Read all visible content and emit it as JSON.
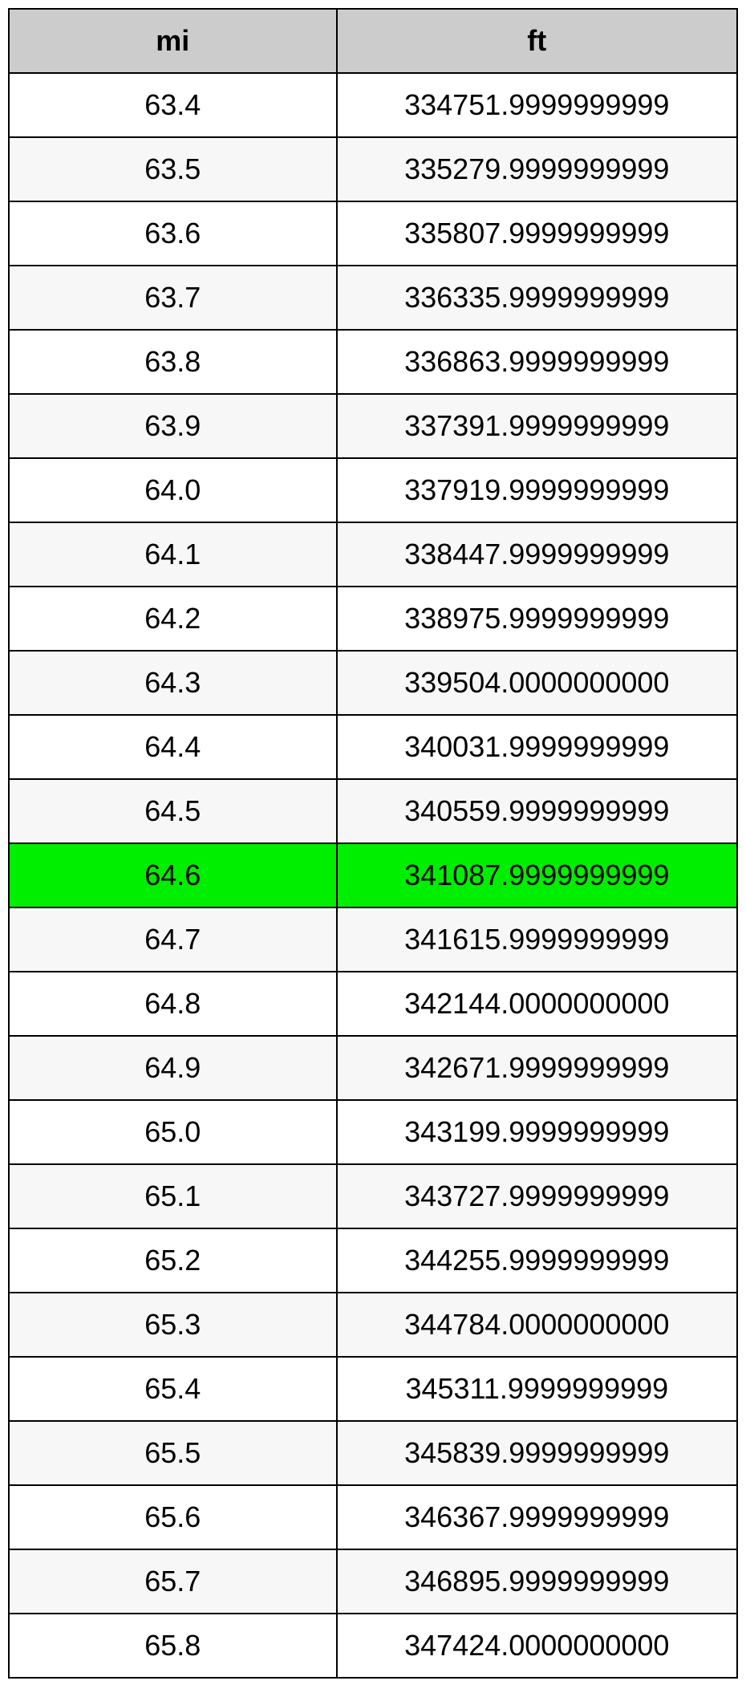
{
  "table": {
    "type": "table",
    "columns": [
      {
        "key": "mi",
        "label": "mi",
        "width_pct": 45,
        "align": "center"
      },
      {
        "key": "ft",
        "label": "ft",
        "width_pct": 55,
        "align": "center"
      }
    ],
    "header_bg_color": "#cccccc",
    "header_font_weight": "bold",
    "header_fontsize": 36,
    "cell_fontsize": 36,
    "border_color": "#000000",
    "border_width": 2,
    "row_bg_odd": "#ffffff",
    "row_bg_even": "#f7f7f7",
    "highlight_bg": "#00ee00",
    "text_color": "#000000",
    "rows": [
      {
        "mi": "63.4",
        "ft": "334751.9999999999",
        "highlighted": false
      },
      {
        "mi": "63.5",
        "ft": "335279.9999999999",
        "highlighted": false
      },
      {
        "mi": "63.6",
        "ft": "335807.9999999999",
        "highlighted": false
      },
      {
        "mi": "63.7",
        "ft": "336335.9999999999",
        "highlighted": false
      },
      {
        "mi": "63.8",
        "ft": "336863.9999999999",
        "highlighted": false
      },
      {
        "mi": "63.9",
        "ft": "337391.9999999999",
        "highlighted": false
      },
      {
        "mi": "64.0",
        "ft": "337919.9999999999",
        "highlighted": false
      },
      {
        "mi": "64.1",
        "ft": "338447.9999999999",
        "highlighted": false
      },
      {
        "mi": "64.2",
        "ft": "338975.9999999999",
        "highlighted": false
      },
      {
        "mi": "64.3",
        "ft": "339504.0000000000",
        "highlighted": false
      },
      {
        "mi": "64.4",
        "ft": "340031.9999999999",
        "highlighted": false
      },
      {
        "mi": "64.5",
        "ft": "340559.9999999999",
        "highlighted": false
      },
      {
        "mi": "64.6",
        "ft": "341087.9999999999",
        "highlighted": true
      },
      {
        "mi": "64.7",
        "ft": "341615.9999999999",
        "highlighted": false
      },
      {
        "mi": "64.8",
        "ft": "342144.0000000000",
        "highlighted": false
      },
      {
        "mi": "64.9",
        "ft": "342671.9999999999",
        "highlighted": false
      },
      {
        "mi": "65.0",
        "ft": "343199.9999999999",
        "highlighted": false
      },
      {
        "mi": "65.1",
        "ft": "343727.9999999999",
        "highlighted": false
      },
      {
        "mi": "65.2",
        "ft": "344255.9999999999",
        "highlighted": false
      },
      {
        "mi": "65.3",
        "ft": "344784.0000000000",
        "highlighted": false
      },
      {
        "mi": "65.4",
        "ft": "345311.9999999999",
        "highlighted": false
      },
      {
        "mi": "65.5",
        "ft": "345839.9999999999",
        "highlighted": false
      },
      {
        "mi": "65.6",
        "ft": "346367.9999999999",
        "highlighted": false
      },
      {
        "mi": "65.7",
        "ft": "346895.9999999999",
        "highlighted": false
      },
      {
        "mi": "65.8",
        "ft": "347424.0000000000",
        "highlighted": false
      }
    ]
  }
}
